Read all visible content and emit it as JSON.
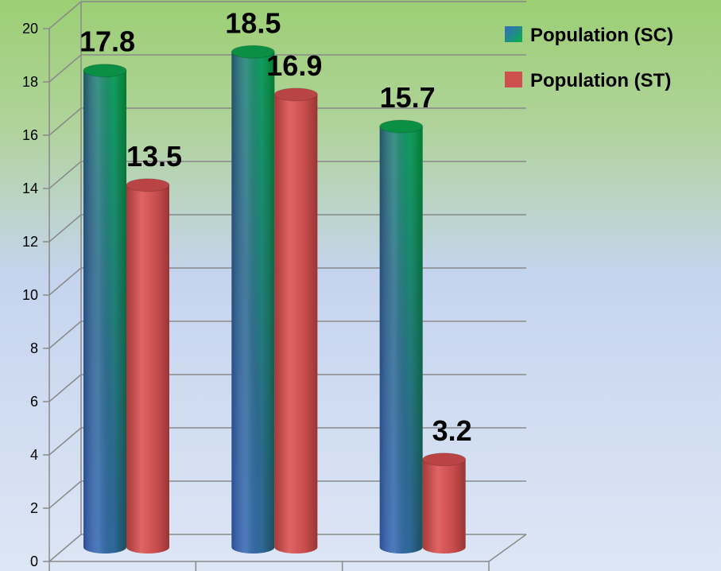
{
  "chart_data": {
    "type": "bar",
    "categories": [
      "",
      "",
      ""
    ],
    "series": [
      {
        "name": "Population (SC)",
        "values": [
          17.8,
          18.5,
          15.7
        ],
        "color_top": "#0aa84a",
        "color_bottom": "#3f6fc0"
      },
      {
        "name": "Population (ST)",
        "values": [
          13.5,
          16.9,
          3.2
        ],
        "color_top": "#c94a4a",
        "color_bottom": "#c94a4a"
      }
    ],
    "data_labels": [
      [
        "17.8",
        "18.5",
        "15.7"
      ],
      [
        "13.5",
        "16.9",
        "3.2"
      ]
    ],
    "y_ticks": [
      "0",
      "2",
      "4",
      "6",
      "8",
      "10",
      "12",
      "14",
      "16",
      "18",
      "20"
    ],
    "ylim": [
      0,
      20
    ],
    "grid": true,
    "legend_position": "top-right",
    "title": "",
    "xlabel": "",
    "ylabel": "",
    "style": "3d-cylinder",
    "background": {
      "top": "#9ccf74",
      "bottom": "#dde6f5",
      "middle": "#c5d4ee"
    }
  }
}
